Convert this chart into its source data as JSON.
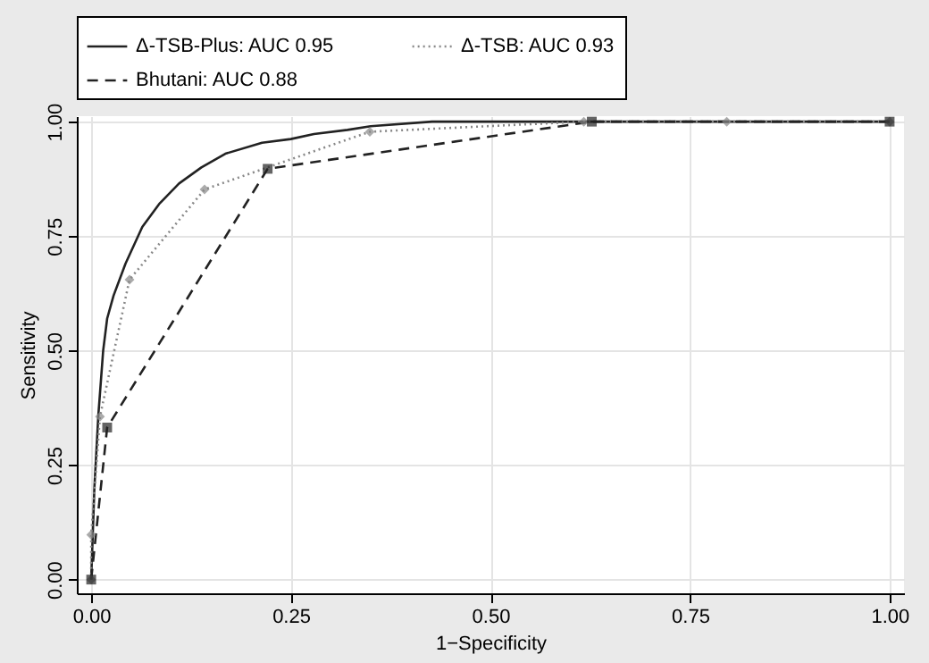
{
  "chart_data": {
    "type": "line",
    "xlabel": "1−Specificity",
    "ylabel": "Sensitivity",
    "xlim": [
      -0.018,
      1.018
    ],
    "ylim": [
      -0.03,
      1.012
    ],
    "xticks": [
      {
        "value": 0,
        "label": "0.00"
      },
      {
        "value": 0.25,
        "label": "0.25"
      },
      {
        "value": 0.5,
        "label": "0.50"
      },
      {
        "value": 0.75,
        "label": "0.75"
      },
      {
        "value": 1,
        "label": "1.00"
      }
    ],
    "yticks": [
      {
        "value": 0,
        "label": "0.00"
      },
      {
        "value": 0.25,
        "label": "0.25"
      },
      {
        "value": 0.5,
        "label": "0.50"
      },
      {
        "value": 0.75,
        "label": "0.75"
      },
      {
        "value": 1,
        "label": "1.00"
      }
    ],
    "grid": true,
    "legend": "top",
    "series": [
      {
        "name": "Δ-TSB-Plus: AUC 0.95",
        "color": "#222222",
        "line_style": "solid",
        "marker": "none",
        "x": [
          0,
          0.004,
          0.009,
          0.015,
          0.02,
          0.028,
          0.043,
          0.064,
          0.085,
          0.11,
          0.138,
          0.168,
          0.214,
          0.25,
          0.279,
          0.321,
          0.35,
          0.427,
          1.0
        ],
        "values": [
          0,
          0.2,
          0.36,
          0.5,
          0.57,
          0.62,
          0.69,
          0.77,
          0.82,
          0.865,
          0.9,
          0.93,
          0.954,
          0.962,
          0.973,
          0.982,
          0.99,
          1.0,
          1.0
        ]
      },
      {
        "name": "Δ-TSB: AUC 0.93",
        "color": "#888888",
        "line_style": "dotted",
        "marker": "diamond",
        "x": [
          0,
          0,
          0.011,
          0.048,
          0.142,
          0.349,
          0.617,
          0.796,
          1.0
        ],
        "values": [
          0,
          0.098,
          0.356,
          0.655,
          0.852,
          0.978,
          1.0,
          1.0,
          1.0
        ]
      },
      {
        "name": "Bhutani: AUC 0.88",
        "color": "#222222",
        "line_style": "dashed",
        "marker": "square",
        "x": [
          0,
          0.02,
          0.221,
          0.627,
          1.0
        ],
        "values": [
          0,
          0.332,
          0.897,
          1.0,
          1.0
        ]
      }
    ]
  }
}
